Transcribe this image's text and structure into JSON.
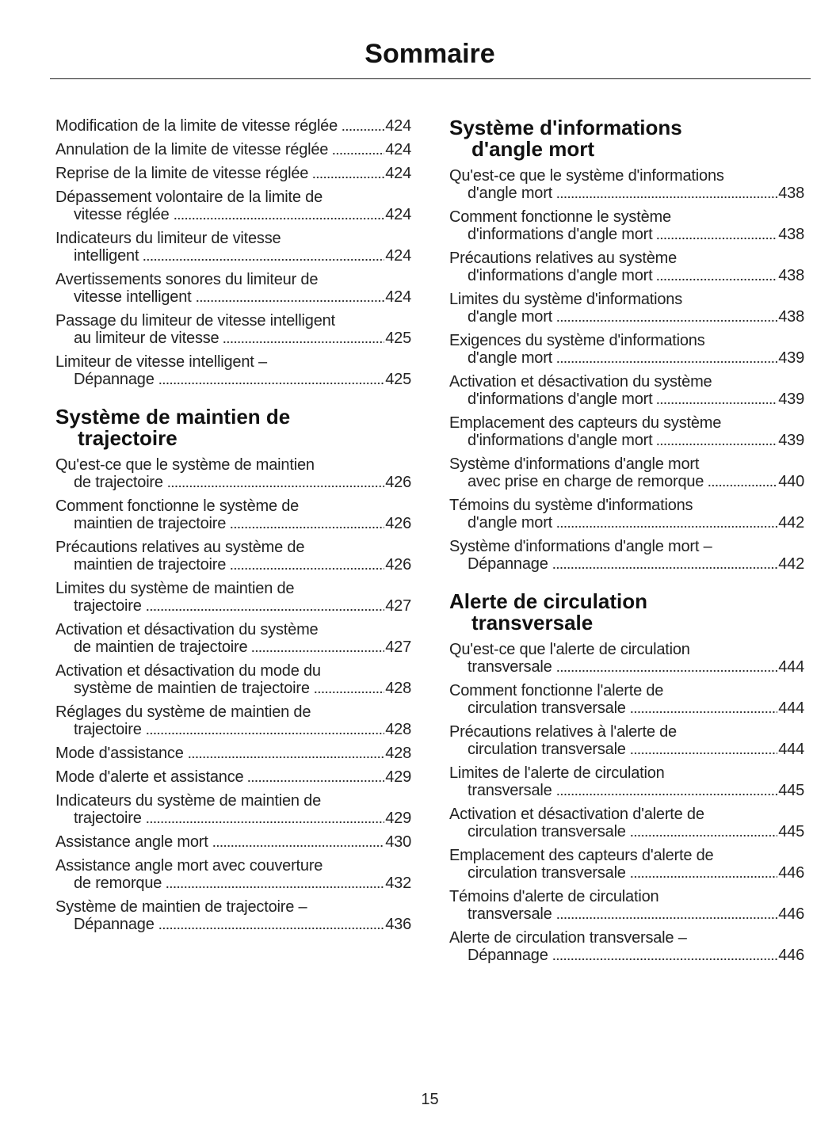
{
  "header": {
    "title": "Sommaire"
  },
  "columns": [
    {
      "blocks": [
        {
          "entries": [
            {
              "lines": [
                "Modification de la limite de vitesse réglée"
              ],
              "page": "424"
            },
            {
              "lines": [
                "Annulation de la limite de vitesse réglée"
              ],
              "page": "424"
            },
            {
              "lines": [
                "Reprise de la limite de vitesse réglée"
              ],
              "page": "424"
            },
            {
              "lines": [
                "Dépassement volontaire de la limite de",
                "vitesse réglée"
              ],
              "page": "424"
            },
            {
              "lines": [
                "Indicateurs du limiteur de vitesse",
                "intelligent"
              ],
              "page": "424"
            },
            {
              "lines": [
                "Avertissements sonores du limiteur de",
                "vitesse intelligent"
              ],
              "page": "424"
            },
            {
              "lines": [
                "Passage du limiteur de vitesse intelligent",
                "au limiteur de vitesse"
              ],
              "page": "425"
            },
            {
              "lines": [
                "Limiteur de vitesse intelligent –",
                "Dépannage"
              ],
              "page": "425"
            }
          ]
        },
        {
          "heading": [
            "Système de maintien de",
            "trajectoire"
          ],
          "entries": [
            {
              "lines": [
                "Qu'est-ce que le système de maintien",
                "de trajectoire"
              ],
              "page": "426"
            },
            {
              "lines": [
                "Comment fonctionne le système de",
                "maintien de trajectoire"
              ],
              "page": "426"
            },
            {
              "lines": [
                "Précautions relatives au système de",
                "maintien de trajectoire"
              ],
              "page": "426"
            },
            {
              "lines": [
                "Limites du système de maintien de",
                "trajectoire"
              ],
              "page": "427"
            },
            {
              "lines": [
                "Activation et désactivation du système",
                "de maintien de trajectoire"
              ],
              "page": "427"
            },
            {
              "lines": [
                "Activation et désactivation du mode du",
                "système de maintien de trajectoire"
              ],
              "page": "428"
            },
            {
              "lines": [
                "Réglages du système de maintien de",
                "trajectoire"
              ],
              "page": "428"
            },
            {
              "lines": [
                "Mode d'assistance"
              ],
              "page": "428"
            },
            {
              "lines": [
                "Mode d'alerte et assistance"
              ],
              "page": "429"
            },
            {
              "lines": [
                "Indicateurs du système de maintien de",
                "trajectoire"
              ],
              "page": "429"
            },
            {
              "lines": [
                "Assistance angle mort"
              ],
              "page": "430"
            },
            {
              "lines": [
                "Assistance angle mort avec couverture",
                "de remorque"
              ],
              "page": "432"
            },
            {
              "lines": [
                "Système de maintien de trajectoire –",
                "Dépannage"
              ],
              "page": "436"
            }
          ]
        }
      ]
    },
    {
      "blocks": [
        {
          "heading": [
            "Système d'informations",
            "d'angle mort"
          ],
          "entries": [
            {
              "lines": [
                "Qu'est-ce que le système d'informations",
                "d'angle mort"
              ],
              "page": "438"
            },
            {
              "lines": [
                "Comment fonctionne le système",
                "d'informations d'angle mort"
              ],
              "page": "438"
            },
            {
              "lines": [
                "Précautions relatives au système",
                "d'informations d'angle mort"
              ],
              "page": "438"
            },
            {
              "lines": [
                "Limites du système d'informations",
                "d'angle mort"
              ],
              "page": "438"
            },
            {
              "lines": [
                "Exigences du système d'informations",
                "d'angle mort"
              ],
              "page": "439"
            },
            {
              "lines": [
                "Activation et désactivation du système",
                "d'informations d'angle mort"
              ],
              "page": "439"
            },
            {
              "lines": [
                "Emplacement des capteurs du système",
                "d'informations d'angle mort"
              ],
              "page": "439"
            },
            {
              "lines": [
                "Système d'informations d'angle mort",
                "avec prise en charge de remorque"
              ],
              "page": "440"
            },
            {
              "lines": [
                "Témoins du système d'informations",
                "d'angle mort"
              ],
              "page": "442"
            },
            {
              "lines": [
                "Système d'informations d'angle mort –",
                "Dépannage"
              ],
              "page": "442"
            }
          ]
        },
        {
          "heading": [
            "Alerte de circulation",
            "transversale"
          ],
          "entries": [
            {
              "lines": [
                "Qu'est-ce que l'alerte de circulation",
                "transversale"
              ],
              "page": "444"
            },
            {
              "lines": [
                "Comment fonctionne l'alerte de",
                "circulation transversale"
              ],
              "page": "444"
            },
            {
              "lines": [
                "Précautions relatives à l'alerte de",
                "circulation transversale"
              ],
              "page": "444"
            },
            {
              "lines": [
                "Limites de l'alerte de circulation",
                "transversale"
              ],
              "page": "445"
            },
            {
              "lines": [
                "Activation et désactivation d'alerte de",
                "circulation transversale"
              ],
              "page": "445"
            },
            {
              "lines": [
                "Emplacement des capteurs d'alerte de",
                "circulation transversale"
              ],
              "page": "446"
            },
            {
              "lines": [
                "Témoins d'alerte de circulation",
                "transversale"
              ],
              "page": "446"
            },
            {
              "lines": [
                "Alerte de circulation transversale –",
                "Dépannage"
              ],
              "page": "446"
            }
          ]
        }
      ]
    }
  ],
  "page_number": "15"
}
